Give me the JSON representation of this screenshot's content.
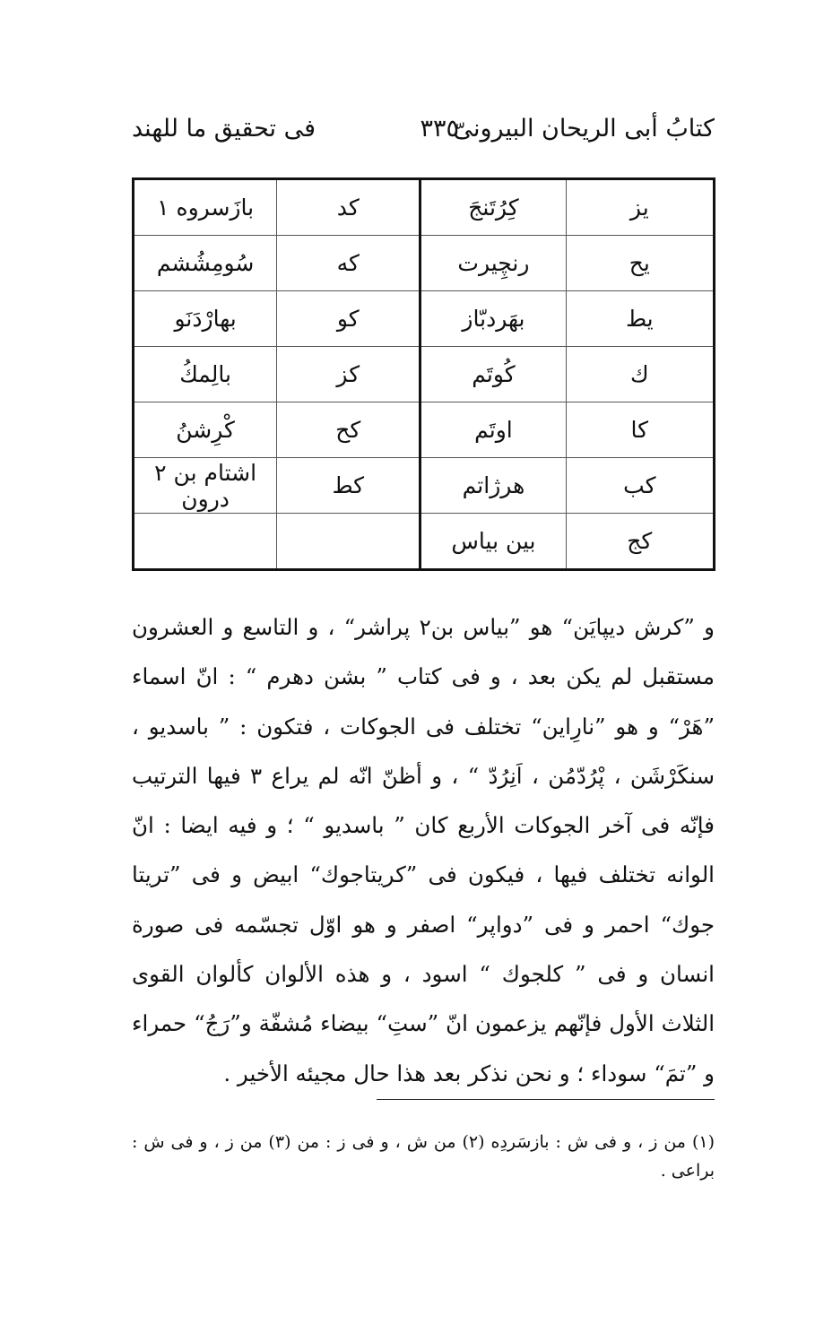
{
  "header": {
    "right": "كتابُ أبى الريحان البيرونىّ",
    "page_number": "٣٣٥",
    "left": "فى تحقيق ما للهند"
  },
  "table": {
    "rows": [
      [
        "يز",
        "كِرُتَنجَ",
        "كد",
        "بازَسروه ١"
      ],
      [
        "يح",
        "رنچِيرت",
        "كه",
        "سُومِشُشم"
      ],
      [
        "يط",
        "بهَردبّاز",
        "كو",
        "بهارْدَنَو"
      ],
      [
        "ك",
        "كُوتَم",
        "كز",
        "بالِمكُ"
      ],
      [
        "كا",
        "اوتَم",
        "كح",
        "كْرِشنُ"
      ],
      [
        "كب",
        "هرژاتم",
        "كط",
        "اشتام بن ٢ درون"
      ],
      [
        "كج",
        "بين بياس",
        "",
        ""
      ]
    ]
  },
  "paragraph": "و ”كرش ديپايَن“ هو ”بياس بن٢ پراشر“ ، و التاسع و العشرون مستقبل لم يكن بعد ، و فى كتاب ” بشن دهرم “ : انّ اسماء ”هَرْ“ و هو ”نارِاين“ تختلف فى الجوكات ، فتكون : ” باسديو ، سنكَرْشَن ، پْرُدّمُن ، اَنِرُدّ “ ، و أظنّ انّه لم يراع ٣ فيها الترتيب فإنّه فى آخر الجوكات الأربع كان ” باسديو “ ؛ و فيه ايضا : انّ الوانه تختلف فيها ، فيكون فى ”كريتاجوك“ ابيض و فى ”تريتا جوك“ احمر و فى ”دواپر“ اصفر و هو اوّل تجسّمه فى صورة انسان و فى ” كلجوك “ اسود ، و هذه الألوان كألوان القوى الثلاث الأول فإنّهم يزعمون انّ ”ستِ“ بيضاء مُشفّة و”رَجُ“ حمراء و ”تمَ“ سوداء ؛ و نحن نذكر بعد هذا حال مجيئه الأخير .",
  "footnotes": "(١) من ز ، و فى ش : بازسَردِه (٢) من ش ، و فى ز : من (٣) من ز ، و فى ش : براعى ."
}
